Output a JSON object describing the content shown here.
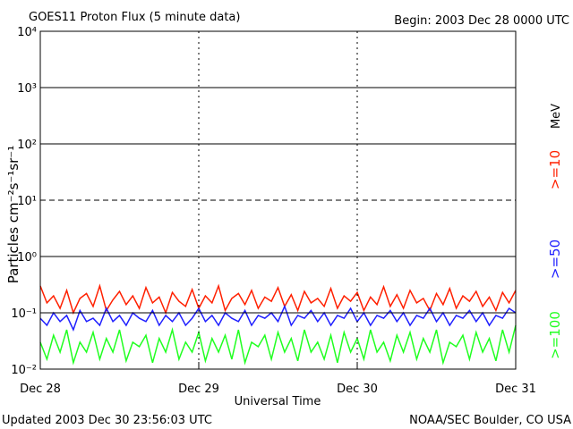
{
  "chart_data": {
    "type": "line",
    "title": "GOES11 Proton Flux (5 minute data)",
    "subtitle": "Begin: 2003 Dec 28 0000 UTC",
    "x_label": "Universal Time",
    "y_label": "Particles cm⁻²s⁻¹sr⁻¹",
    "legend_unit": "MeV",
    "footer_left": "Updated 2003 Dec 30 23:56:03 UTC",
    "footer_right": "NOAA/SEC Boulder, CO USA",
    "log_y": true,
    "grid": true,
    "dashed_level": 10,
    "legend": "right",
    "xlim": [
      0,
      72
    ],
    "xticks": [
      {
        "value": 0,
        "label": "Dec 28"
      },
      {
        "value": 24,
        "label": "Dec 29"
      },
      {
        "value": 48,
        "label": "Dec 30"
      },
      {
        "value": 72,
        "label": "Dec 31"
      }
    ],
    "ylim": [
      0.01,
      10000
    ],
    "yticks": [
      {
        "value": 0.01,
        "label": "10⁻²"
      },
      {
        "value": 0.1,
        "label": "10⁻¹"
      },
      {
        "value": 1,
        "label": "10⁰"
      },
      {
        "value": 10,
        "label": "10¹"
      },
      {
        "value": 100,
        "label": "10²"
      },
      {
        "value": 1000,
        "label": "10³"
      },
      {
        "value": 10000,
        "label": "10⁴"
      }
    ],
    "x": [
      0,
      1,
      2,
      3,
      4,
      5,
      6,
      7,
      8,
      9,
      10,
      11,
      12,
      13,
      14,
      15,
      16,
      17,
      18,
      19,
      20,
      21,
      22,
      23,
      24,
      25,
      26,
      27,
      28,
      29,
      30,
      31,
      32,
      33,
      34,
      35,
      36,
      37,
      38,
      39,
      40,
      41,
      42,
      43,
      44,
      45,
      46,
      47,
      48,
      49,
      50,
      51,
      52,
      53,
      54,
      55,
      56,
      57,
      58,
      59,
      60,
      61,
      62,
      63,
      64,
      65,
      66,
      67,
      68,
      69,
      70,
      71,
      72
    ],
    "series": [
      {
        "name": ">=10",
        "color": "#ff2000",
        "values": [
          0.3,
          0.15,
          0.2,
          0.12,
          0.25,
          0.1,
          0.18,
          0.22,
          0.13,
          0.3,
          0.11,
          0.17,
          0.24,
          0.14,
          0.2,
          0.12,
          0.28,
          0.15,
          0.19,
          0.1,
          0.23,
          0.16,
          0.13,
          0.26,
          0.12,
          0.2,
          0.15,
          0.3,
          0.11,
          0.18,
          0.22,
          0.14,
          0.25,
          0.12,
          0.19,
          0.16,
          0.28,
          0.13,
          0.21,
          0.11,
          0.24,
          0.15,
          0.18,
          0.13,
          0.27,
          0.12,
          0.2,
          0.16,
          0.23,
          0.11,
          0.19,
          0.14,
          0.29,
          0.13,
          0.21,
          0.12,
          0.25,
          0.15,
          0.18,
          0.11,
          0.22,
          0.14,
          0.27,
          0.12,
          0.2,
          0.16,
          0.24,
          0.13,
          0.19,
          0.11,
          0.23,
          0.15,
          0.25
        ]
      },
      {
        "name": ">=50",
        "color": "#2020ff",
        "values": [
          0.08,
          0.06,
          0.1,
          0.07,
          0.09,
          0.05,
          0.11,
          0.07,
          0.08,
          0.06,
          0.12,
          0.07,
          0.09,
          0.06,
          0.1,
          0.08,
          0.07,
          0.11,
          0.06,
          0.09,
          0.07,
          0.1,
          0.06,
          0.08,
          0.12,
          0.07,
          0.09,
          0.06,
          0.1,
          0.08,
          0.07,
          0.11,
          0.06,
          0.09,
          0.08,
          0.1,
          0.07,
          0.13,
          0.06,
          0.09,
          0.08,
          0.11,
          0.07,
          0.1,
          0.06,
          0.09,
          0.08,
          0.12,
          0.07,
          0.1,
          0.06,
          0.09,
          0.08,
          0.11,
          0.07,
          0.1,
          0.06,
          0.09,
          0.08,
          0.12,
          0.07,
          0.1,
          0.06,
          0.09,
          0.08,
          0.11,
          0.07,
          0.1,
          0.06,
          0.09,
          0.08,
          0.12,
          0.1
        ]
      },
      {
        "name": ">=100",
        "color": "#20ff20",
        "values": [
          0.03,
          0.015,
          0.04,
          0.02,
          0.05,
          0.013,
          0.03,
          0.02,
          0.045,
          0.015,
          0.035,
          0.02,
          0.05,
          0.014,
          0.03,
          0.025,
          0.04,
          0.013,
          0.035,
          0.02,
          0.05,
          0.015,
          0.03,
          0.02,
          0.045,
          0.014,
          0.035,
          0.02,
          0.04,
          0.015,
          0.05,
          0.013,
          0.03,
          0.025,
          0.04,
          0.015,
          0.045,
          0.02,
          0.035,
          0.014,
          0.05,
          0.02,
          0.03,
          0.015,
          0.04,
          0.013,
          0.045,
          0.02,
          0.035,
          0.015,
          0.05,
          0.02,
          0.03,
          0.014,
          0.04,
          0.02,
          0.045,
          0.015,
          0.035,
          0.02,
          0.05,
          0.013,
          0.03,
          0.025,
          0.04,
          0.015,
          0.045,
          0.02,
          0.035,
          0.014,
          0.05,
          0.02,
          0.06
        ]
      }
    ]
  }
}
